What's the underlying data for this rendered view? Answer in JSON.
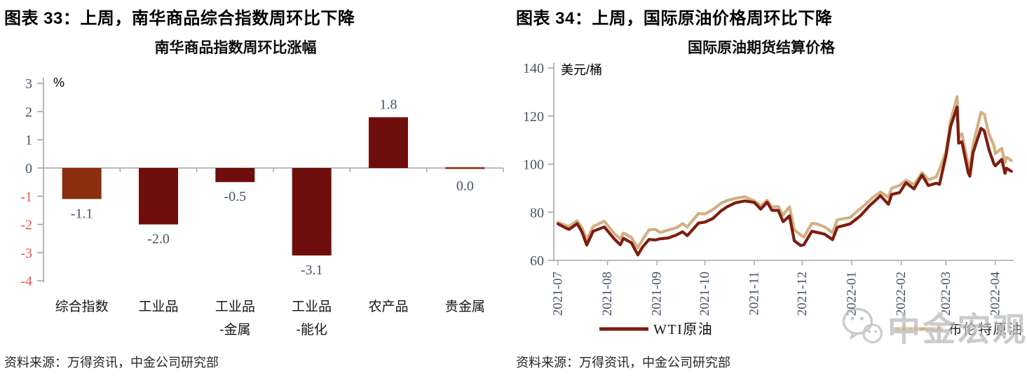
{
  "figures": [
    {
      "header": "图表 33：上周，南华商品综合指数周环比下降",
      "title": "南华商品指数周环比涨幅",
      "source": "资料来源：万得资讯，中金公司研究部"
    },
    {
      "header": "图表 34：上周，国际原油价格周环比下降",
      "title": "国际原油期货结算价格",
      "source": "资料来源：万得资讯，中金公司研究部"
    }
  ],
  "watermark": {
    "text": "中金宏观",
    "icon": "wechat-icon",
    "color": "#bdbdbd"
  },
  "colors": {
    "axis_gray": "#a6a6a6",
    "tick_label": "#44546A",
    "negative_tick_label": "#f2524e",
    "bar_dark_maroon": "#6E0E0C",
    "bar_brown": "#8C2F0E",
    "wti_line": "#7E1D0F",
    "brent_line": "#D2B083"
  },
  "chart_data": [
    {
      "type": "bar",
      "title": "南华商品指数周环比涨幅",
      "unit": "%",
      "categories": [
        [
          "综合指数"
        ],
        [
          "工业品"
        ],
        [
          "工业品",
          "-金属"
        ],
        [
          "工业品",
          "-能化"
        ],
        [
          "农产品"
        ],
        [
          "贵金属"
        ]
      ],
      "values": [
        -1.1,
        -2.0,
        -0.5,
        -3.1,
        1.8,
        0.0
      ],
      "labels": [
        "-1.1",
        "-2.0",
        "-0.5",
        "-3.1",
        "1.8",
        "0.0"
      ],
      "ylim": [
        -4,
        3
      ],
      "yticks": [
        3,
        2,
        1,
        0,
        -1,
        -2,
        -3,
        -4
      ],
      "bar_colors": [
        "#8C2F0E",
        "#6E0E0C",
        "#6E0E0C",
        "#6E0E0C",
        "#6E0E0C",
        "#8A2A1B"
      ],
      "grid": false,
      "legend": null
    },
    {
      "type": "line",
      "title": "国际原油期货结算价格",
      "unit": "美元/桶",
      "ylim": [
        60,
        140
      ],
      "yticks": [
        140,
        120,
        100,
        80,
        60
      ],
      "grid": false,
      "legend_position": "bottom",
      "x_meaning": "days since 2021-07-01",
      "xticks": [
        {
          "label": "2021-07",
          "day": 0
        },
        {
          "label": "2021-08",
          "day": 31
        },
        {
          "label": "2021-09",
          "day": 62
        },
        {
          "label": "2021-10",
          "day": 92
        },
        {
          "label": "2021-11",
          "day": 123
        },
        {
          "label": "2021-12",
          "day": 153
        },
        {
          "label": "2022-01",
          "day": 184
        },
        {
          "label": "2022-02",
          "day": 215
        },
        {
          "label": "2022-03",
          "day": 243
        },
        {
          "label": "2022-04",
          "day": 274
        }
      ],
      "x": [
        0,
        5,
        7,
        12,
        15,
        18,
        22,
        29,
        35,
        39,
        41,
        46,
        50,
        53,
        57,
        61,
        64,
        69,
        74,
        78,
        81,
        88,
        92,
        97,
        102,
        106,
        111,
        117,
        123,
        127,
        131,
        134,
        138,
        141,
        145,
        148,
        152,
        154,
        159,
        162,
        167,
        172,
        175,
        183,
        188,
        190,
        195,
        197,
        202,
        207,
        209,
        214,
        218,
        223,
        228,
        232,
        237,
        239,
        243,
        246,
        250,
        251,
        253,
        257,
        258,
        260,
        265,
        267,
        270,
        273,
        274,
        278,
        280,
        281,
        284
      ],
      "series": [
        {
          "name": "WTI原油",
          "color": "#7E1D0F",
          "values": [
            75.2,
            73.4,
            72.9,
            75.3,
            71.8,
            66.4,
            72.1,
            73.9,
            69.1,
            66.5,
            69.2,
            67.3,
            62.3,
            65.6,
            68.7,
            68.5,
            69.0,
            69.3,
            70.5,
            71.9,
            70.3,
            75.5,
            75.9,
            77.4,
            80.5,
            82.3,
            83.9,
            84.7,
            84.1,
            81.3,
            84.2,
            80.8,
            80.8,
            76.1,
            78.5,
            68.2,
            66.2,
            66.5,
            72.1,
            71.7,
            70.9,
            68.6,
            73.8,
            75.2,
            77.8,
            78.9,
            82.6,
            83.8,
            86.9,
            83.3,
            87.4,
            88.2,
            92.3,
            89.7,
            95.5,
            91.1,
            92.1,
            91.6,
            103.4,
            115.7,
            123.7,
            108.7,
            109.3,
            96.4,
            95.0,
            104.7,
            114.9,
            113.9,
            106.0,
            100.3,
            99.3,
            102.0,
            96.2,
            98.3,
            97.0
          ]
        },
        {
          "name": "布伦特原油",
          "color": "#D2B083",
          "values": [
            75.8,
            74.5,
            74.1,
            76.5,
            73.6,
            68.6,
            74.1,
            76.3,
            71.3,
            69.0,
            71.4,
            69.5,
            65.2,
            68.7,
            72.7,
            72.9,
            71.6,
            72.6,
            73.5,
            75.3,
            73.9,
            79.5,
            79.3,
            81.1,
            83.7,
            84.9,
            85.8,
            86.4,
            84.7,
            82.7,
            85.0,
            82.2,
            82.4,
            78.9,
            82.3,
            72.7,
            70.6,
            69.7,
            75.4,
            75.2,
            73.9,
            71.5,
            76.9,
            77.8,
            80.8,
            81.8,
            84.7,
            86.1,
            88.4,
            86.3,
            90.0,
            91.2,
            93.3,
            91.5,
            96.5,
            93.5,
            94.8,
            97.9,
            105.0,
            118.1,
            128.0,
            111.1,
            112.7,
            99.9,
            98.0,
            107.9,
            121.6,
            120.7,
            112.5,
            107.9,
            104.4,
            106.6,
            100.6,
            102.8,
            101.5
          ]
        }
      ]
    }
  ]
}
